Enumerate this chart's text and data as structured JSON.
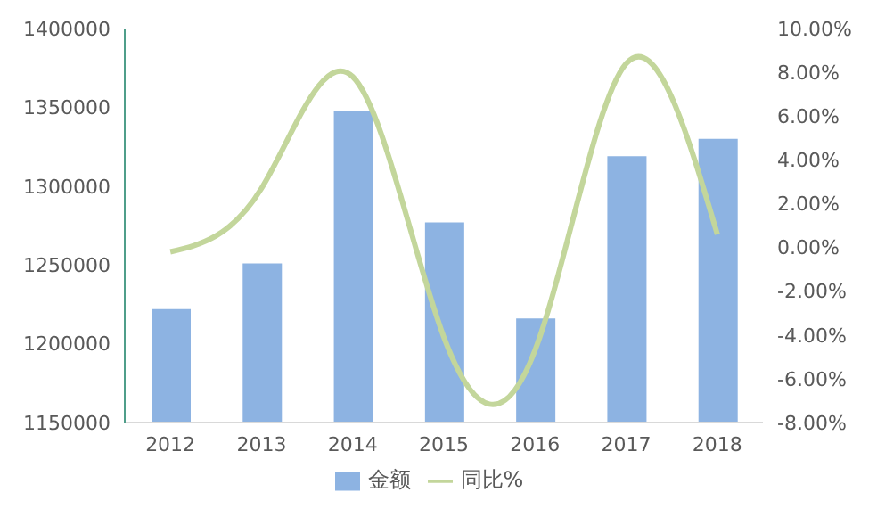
{
  "chart_data": {
    "type": "bar",
    "categories": [
      "2012",
      "2013",
      "2014",
      "2015",
      "2016",
      "2017",
      "2018"
    ],
    "series": [
      {
        "name": "金额",
        "color": "#8db3e2",
        "values": [
          1222000,
          1251000,
          1348000,
          1277000,
          1216000,
          1319000,
          1330000
        ]
      },
      {
        "name": "同比%",
        "type": "line",
        "axis": "y2",
        "color": "#c3d69b",
        "values": [
          -0.2,
          2.7,
          7.8,
          -4.1,
          -4.7,
          8.4,
          0.6
        ]
      }
    ],
    "ylim": [
      1150000,
      1400000
    ],
    "yticks": [
      1150000,
      1200000,
      1250000,
      1300000,
      1350000,
      1400000
    ],
    "y2lim": [
      -8,
      10
    ],
    "y2ticks": [
      {
        "value": -8,
        "label": "-8.00%"
      },
      {
        "value": -6,
        "label": "-6.00%"
      },
      {
        "value": -4,
        "label": "-4.00%"
      },
      {
        "value": -2,
        "label": "-2.00%"
      },
      {
        "value": 0,
        "label": "0.00%"
      },
      {
        "value": 2,
        "label": "2.00%"
      },
      {
        "value": 4,
        "label": "4.00%"
      },
      {
        "value": 6,
        "label": "6.00%"
      },
      {
        "value": 8,
        "label": "8.00%"
      },
      {
        "value": 10,
        "label": "10.00%"
      }
    ],
    "legend": "bottom",
    "marker": "none"
  }
}
